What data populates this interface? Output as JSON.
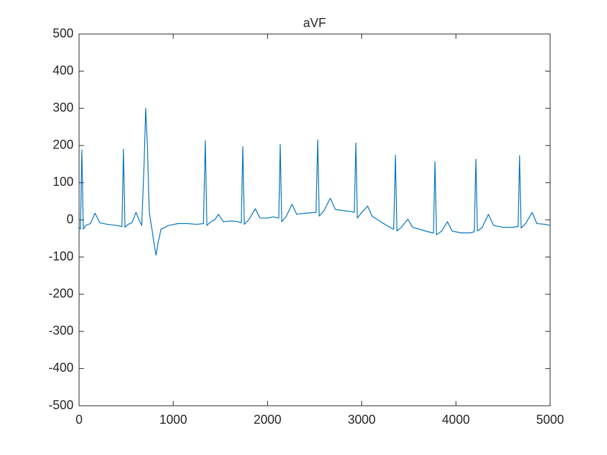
{
  "chart_data": {
    "type": "line",
    "title": "aVF",
    "x": [
      0,
      15,
      29,
      45,
      70,
      120,
      169,
      220,
      300,
      400,
      455,
      471,
      487,
      520,
      560,
      604,
      645,
      665,
      690,
      707,
      725,
      745,
      770,
      800,
      817,
      840,
      870,
      950,
      1050,
      1150,
      1250,
      1320,
      1340,
      1356,
      1400,
      1440,
      1480,
      1530,
      1620,
      1690,
      1722,
      1738,
      1754,
      1800,
      1870,
      1920,
      2000,
      2060,
      2120,
      2135,
      2151,
      2200,
      2260,
      2310,
      2400,
      2515,
      2533,
      2549,
      2600,
      2666,
      2720,
      2800,
      2900,
      2922,
      2938,
      2954,
      3000,
      3063,
      3110,
      3200,
      3300,
      3340,
      3358,
      3374,
      3420,
      3490,
      3540,
      3650,
      3750,
      3762,
      3778,
      3794,
      3850,
      3910,
      3960,
      4050,
      4150,
      4195,
      4212,
      4228,
      4280,
      4345,
      4400,
      4500,
      4600,
      4660,
      4676,
      4692,
      4740,
      4809,
      4860,
      4950,
      5000
    ],
    "series": [
      {
        "name": "aVF",
        "color": "#0072bd",
        "values": [
          -20,
          -25,
          188,
          -25,
          -15,
          -10,
          18,
          -8,
          -12,
          -15,
          -18,
          190,
          -20,
          -12,
          -8,
          20,
          -5,
          -15,
          150,
          300,
          200,
          20,
          -20,
          -70,
          -95,
          -60,
          -25,
          -15,
          -10,
          -10,
          -12,
          -10,
          213,
          -15,
          -5,
          0,
          15,
          -5,
          -3,
          -5,
          -8,
          197,
          -12,
          0,
          30,
          5,
          5,
          8,
          5,
          203,
          -5,
          10,
          42,
          15,
          18,
          20,
          215,
          10,
          25,
          58,
          28,
          25,
          22,
          20,
          207,
          5,
          20,
          37,
          10,
          -5,
          -20,
          -25,
          174,
          -30,
          -20,
          2,
          -20,
          -28,
          -35,
          -35,
          157,
          -40,
          -30,
          -5,
          -30,
          -35,
          -35,
          -32,
          163,
          -30,
          -20,
          15,
          -15,
          -20,
          -20,
          -18,
          173,
          -22,
          -10,
          20,
          -10,
          -12,
          -15
        ]
      }
    ],
    "xlim": [
      0,
      5000
    ],
    "xticks": [
      0,
      1000,
      2000,
      3000,
      4000,
      5000
    ],
    "ylim": [
      -500,
      500
    ],
    "yticks": [
      -500,
      -400,
      -300,
      -200,
      -100,
      0,
      100,
      200,
      300,
      400,
      500
    ]
  }
}
